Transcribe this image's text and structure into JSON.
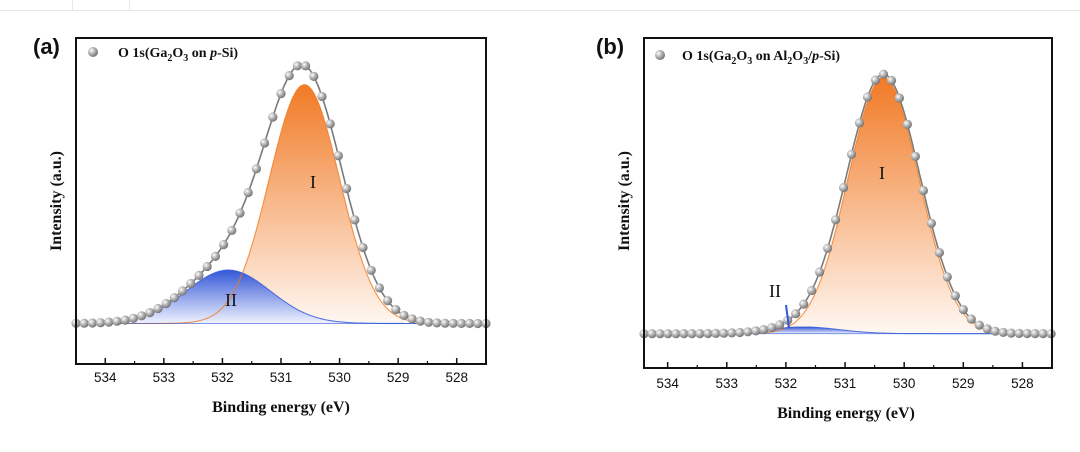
{
  "chart_data": [
    {
      "type": "line",
      "panel_label": "(a)",
      "xlabel": "Binding energy (eV)",
      "ylabel": "Intensity (a.u.)",
      "xlim": [
        534.5,
        527.5
      ],
      "x_reversed": true,
      "y_ticks_shown": false,
      "xticks": [
        534,
        533,
        532,
        531,
        530,
        529,
        528
      ],
      "legend": {
        "marker": "grey-sphere",
        "text": "O 1s(Ga2O3 on p-Si)",
        "position": "top-left"
      },
      "series": [
        {
          "name": "O 1s(Ga2O3 on p-Si)",
          "kind": "measured",
          "center": 530.6,
          "amp": 0.97,
          "width": 0.65,
          "shoulder": {
            "center": 531.9,
            "amp": 0.21,
            "width": 0.75
          },
          "baseline": 0.01,
          "x_start": 534.5,
          "x_end": 527.5,
          "step": 0.14
        },
        {
          "name": "I",
          "kind": "fit-peak",
          "center": 530.6,
          "amp": 0.94,
          "width": 0.6,
          "color": "#f07a1e"
        },
        {
          "name": "II",
          "kind": "fit-peak",
          "center": 531.9,
          "amp": 0.21,
          "width": 0.72,
          "color": "#2f57d9"
        }
      ],
      "annotations": [
        {
          "text": "I",
          "x": 530.5,
          "y": 0.56
        },
        {
          "text": "II",
          "x": 531.8,
          "y": 0.11
        }
      ],
      "colors": {
        "orange": "#f07a1e",
        "blue": "#2f57d9",
        "grey": "#8a8a8a"
      }
    },
    {
      "type": "line",
      "panel_label": "(b)",
      "xlabel": "Binding energy (eV)",
      "ylabel": "Intensity (a.u.)",
      "xlim": [
        534.4,
        527.5
      ],
      "x_reversed": true,
      "y_ticks_shown": false,
      "xticks": [
        534,
        533,
        532,
        531,
        530,
        529,
        528
      ],
      "legend": {
        "marker": "grey-sphere",
        "text": "O 1s(Ga2O3 on Al2O3/p-Si)",
        "position": "top-left"
      },
      "series": [
        {
          "name": "O 1s(Ga2O3 on Al2O3/p-Si)",
          "kind": "measured",
          "center": 530.35,
          "amp": 0.97,
          "width": 0.62,
          "shoulder": {
            "center": 531.7,
            "amp": 0.02,
            "width": 0.6
          },
          "baseline": 0.02,
          "x_start": 534.4,
          "x_end": 527.5,
          "step": 0.135
        },
        {
          "name": "I",
          "kind": "fit-peak",
          "center": 530.35,
          "amp": 0.96,
          "width": 0.6,
          "color": "#f07a1e"
        },
        {
          "name": "II",
          "kind": "fit-peak",
          "center": 531.7,
          "amp": 0.025,
          "width": 0.6,
          "color": "#2f57d9"
        }
      ],
      "annotations": [
        {
          "text": "I",
          "x": 530.3,
          "y": 0.6
        },
        {
          "text": "II",
          "x": 532.2,
          "y": 0.14
        }
      ],
      "colors": {
        "orange": "#f07a1e",
        "blue": "#2f57d9",
        "grey": "#8a8a8a"
      }
    }
  ],
  "text": {
    "a": {
      "label": "(a)",
      "legend_parts": [
        "O 1s(Ga",
        "2",
        "O",
        "3",
        " on ",
        "p",
        "-Si)"
      ],
      "ylabel": "Intensity (a.u.)",
      "xlabel": "Binding energy (eV)",
      "ticks": [
        "534",
        "533",
        "532",
        "531",
        "530",
        "529",
        "528"
      ],
      "peak1": "I",
      "peak2": "II"
    },
    "b": {
      "label": "(b)",
      "legend_parts": [
        "O 1s(Ga",
        "2",
        "O",
        "3",
        " on Al",
        "2",
        "O",
        "3",
        "/",
        "p",
        "-Si)"
      ],
      "ylabel": "Intensity (a.u.)",
      "xlabel": "Binding energy (eV)",
      "ticks": [
        "534",
        "533",
        "532",
        "531",
        "530",
        "529",
        "528"
      ],
      "peak1": "I",
      "peak2": "II"
    }
  }
}
